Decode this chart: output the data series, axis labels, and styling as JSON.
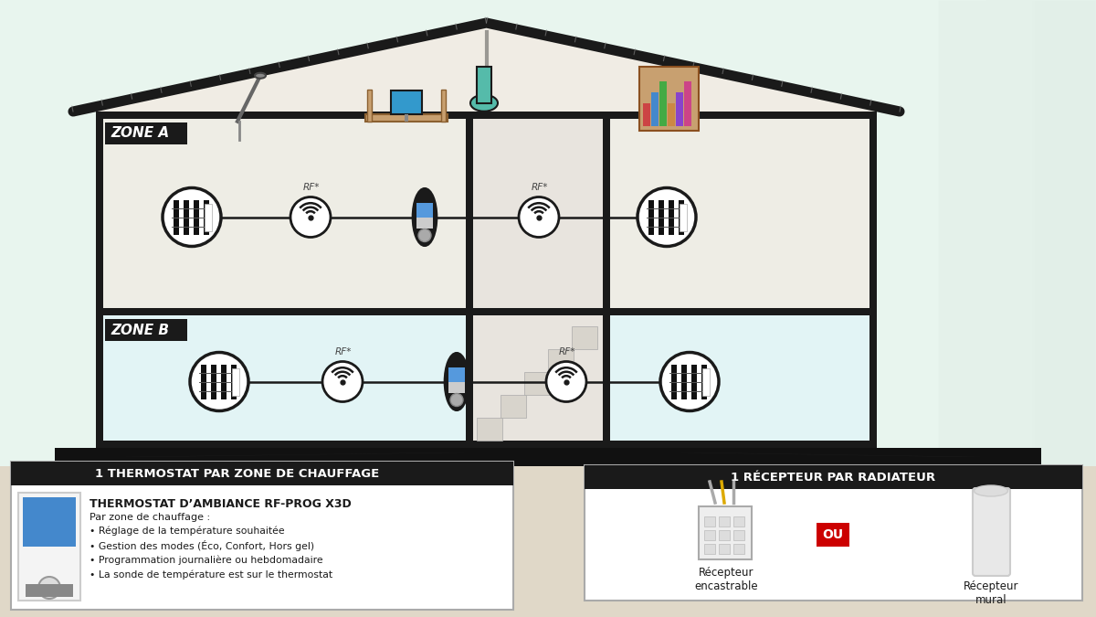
{
  "bg_color": "#e8f5ee",
  "zone_a_label": "ZONE A",
  "zone_b_label": "ZONE B",
  "rf_label": "RF*",
  "box1_header": "1 THERMOSTAT PAR ZONE DE CHAUFFAGE",
  "box1_title": "THERMOSTAT D’AMBIANCE RF-PROG X3D",
  "box1_subtitle": "Par zone de chauffage :",
  "box1_bullets": [
    "• Réglage de la température souhaitée",
    "• Gestion des modes (Éco, Confort, Hors gel)",
    "• Programmation journalière ou hebdomadaire",
    "• La sonde de température est sur le thermostat"
  ],
  "box2_header": "1 RÉCEPTEUR PAR RADIATEUR",
  "box2_label1": "Récepteur\nencastrable",
  "box2_ou": "OU",
  "box2_label2": "Récepteur\nmural",
  "black": "#1a1a1a",
  "white": "#ffffff",
  "ou_bg": "#cc0000"
}
